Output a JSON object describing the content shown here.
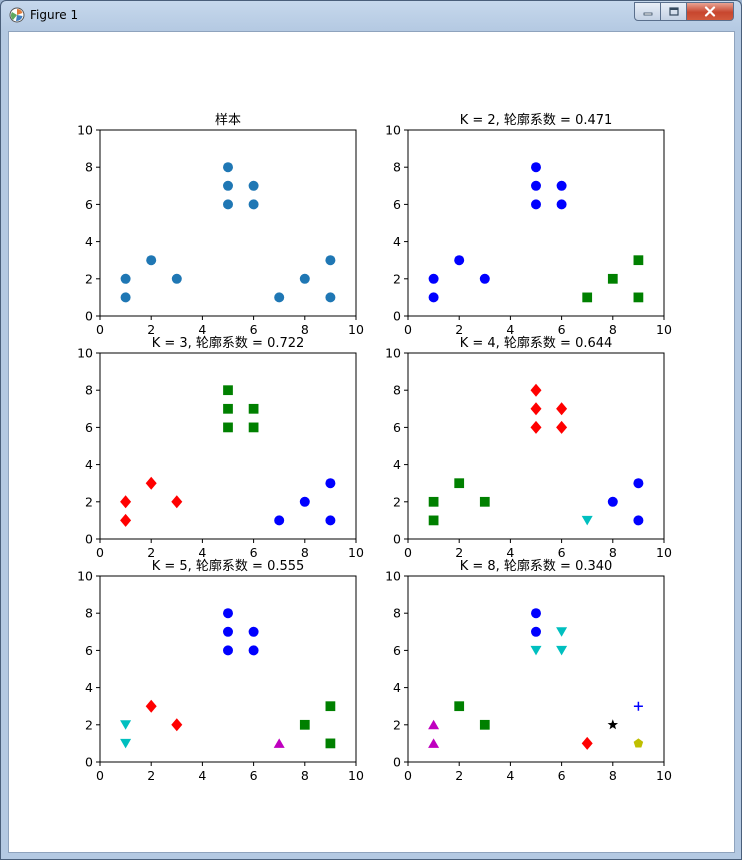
{
  "window": {
    "title": "Figure 1",
    "icon": "matplotlib-figure-icon"
  },
  "chart_data": [
    {
      "type": "scatter",
      "title": "样本",
      "xlim": [
        0,
        10
      ],
      "ylim": [
        0,
        10
      ],
      "xticks": [
        "0",
        "2",
        "4",
        "6",
        "8",
        "10"
      ],
      "yticks": [
        "0",
        "2",
        "4",
        "6",
        "8",
        "10"
      ],
      "series": [
        {
          "marker": "circle",
          "color": "#1f77b4",
          "x": [
            1,
            1,
            2,
            3,
            5,
            5,
            5,
            6,
            6,
            7,
            8,
            9,
            9
          ],
          "y": [
            1,
            2,
            3,
            2,
            8,
            7,
            6,
            7,
            6,
            1,
            2,
            1,
            3
          ]
        }
      ]
    },
    {
      "type": "scatter",
      "title": "K = 2, 轮廓系数 = 0.471",
      "xlim": [
        0,
        10
      ],
      "ylim": [
        0,
        10
      ],
      "xticks": [
        "0",
        "2",
        "4",
        "6",
        "8",
        "10"
      ],
      "yticks": [
        "0",
        "2",
        "4",
        "6",
        "8",
        "10"
      ],
      "series": [
        {
          "marker": "circle",
          "color": "#0000ff",
          "x": [
            1,
            1,
            2,
            3,
            5,
            5,
            5,
            6,
            6
          ],
          "y": [
            1,
            2,
            3,
            2,
            8,
            7,
            6,
            7,
            6
          ]
        },
        {
          "marker": "square",
          "color": "#008000",
          "x": [
            7,
            8,
            9,
            9
          ],
          "y": [
            1,
            2,
            1,
            3
          ]
        }
      ]
    },
    {
      "type": "scatter",
      "title": "K = 3, 轮廓系数 = 0.722",
      "xlim": [
        0,
        10
      ],
      "ylim": [
        0,
        10
      ],
      "xticks": [
        "0",
        "2",
        "4",
        "6",
        "8",
        "10"
      ],
      "yticks": [
        "0",
        "2",
        "4",
        "6",
        "8",
        "10"
      ],
      "series": [
        {
          "marker": "diamond",
          "color": "#ff0000",
          "x": [
            1,
            1,
            2,
            3
          ],
          "y": [
            1,
            2,
            3,
            2
          ]
        },
        {
          "marker": "square",
          "color": "#008000",
          "x": [
            5,
            5,
            5,
            6,
            6
          ],
          "y": [
            8,
            7,
            6,
            7,
            6
          ]
        },
        {
          "marker": "circle",
          "color": "#0000ff",
          "x": [
            7,
            8,
            9,
            9
          ],
          "y": [
            1,
            2,
            1,
            3
          ]
        }
      ]
    },
    {
      "type": "scatter",
      "title": "K = 4, 轮廓系数 = 0.644",
      "xlim": [
        0,
        10
      ],
      "ylim": [
        0,
        10
      ],
      "xticks": [
        "0",
        "2",
        "4",
        "6",
        "8",
        "10"
      ],
      "yticks": [
        "0",
        "2",
        "4",
        "6",
        "8",
        "10"
      ],
      "series": [
        {
          "marker": "square",
          "color": "#008000",
          "x": [
            1,
            1,
            2,
            3
          ],
          "y": [
            1,
            2,
            3,
            2
          ]
        },
        {
          "marker": "diamond",
          "color": "#ff0000",
          "x": [
            5,
            5,
            5,
            6,
            6
          ],
          "y": [
            8,
            7,
            6,
            7,
            6
          ]
        },
        {
          "marker": "triangle-down",
          "color": "#00bfbf",
          "x": [
            7
          ],
          "y": [
            1
          ]
        },
        {
          "marker": "circle",
          "color": "#0000ff",
          "x": [
            8,
            9,
            9
          ],
          "y": [
            2,
            1,
            3
          ]
        }
      ]
    },
    {
      "type": "scatter",
      "title": "K = 5, 轮廓系数 = 0.555",
      "xlim": [
        0,
        10
      ],
      "ylim": [
        0,
        10
      ],
      "xticks": [
        "0",
        "2",
        "4",
        "6",
        "8",
        "10"
      ],
      "yticks": [
        "0",
        "2",
        "4",
        "6",
        "8",
        "10"
      ],
      "series": [
        {
          "marker": "triangle-down",
          "color": "#00bfbf",
          "x": [
            1,
            1
          ],
          "y": [
            1,
            2
          ]
        },
        {
          "marker": "diamond",
          "color": "#ff0000",
          "x": [
            2,
            3
          ],
          "y": [
            3,
            2
          ]
        },
        {
          "marker": "circle",
          "color": "#0000ff",
          "x": [
            5,
            5,
            5,
            6,
            6
          ],
          "y": [
            8,
            7,
            6,
            7,
            6
          ]
        },
        {
          "marker": "triangle-up",
          "color": "#bf00bf",
          "x": [
            7
          ],
          "y": [
            1
          ]
        },
        {
          "marker": "square",
          "color": "#008000",
          "x": [
            8,
            9,
            9
          ],
          "y": [
            2,
            1,
            3
          ]
        }
      ]
    },
    {
      "type": "scatter",
      "title": "K = 8, 轮廓系数 = 0.340",
      "xlim": [
        0,
        10
      ],
      "ylim": [
        0,
        10
      ],
      "xticks": [
        "0",
        "2",
        "4",
        "6",
        "8",
        "10"
      ],
      "yticks": [
        "0",
        "2",
        "4",
        "6",
        "8",
        "10"
      ],
      "series": [
        {
          "marker": "triangle-up",
          "color": "#bf00bf",
          "x": [
            1,
            1
          ],
          "y": [
            1,
            2
          ]
        },
        {
          "marker": "square",
          "color": "#008000",
          "x": [
            2,
            3
          ],
          "y": [
            3,
            2
          ]
        },
        {
          "marker": "circle",
          "color": "#0000ff",
          "x": [
            5,
            5
          ],
          "y": [
            8,
            7
          ]
        },
        {
          "marker": "triangle-down",
          "color": "#00bfbf",
          "x": [
            5,
            6,
            6
          ],
          "y": [
            6,
            7,
            6
          ]
        },
        {
          "marker": "diamond",
          "color": "#ff0000",
          "x": [
            7
          ],
          "y": [
            1
          ]
        },
        {
          "marker": "star",
          "color": "#000000",
          "x": [
            8
          ],
          "y": [
            2
          ]
        },
        {
          "marker": "pentagon",
          "color": "#bfbf00",
          "x": [
            9
          ],
          "y": [
            1
          ]
        },
        {
          "marker": "plus",
          "color": "#0000ff",
          "x": [
            9
          ],
          "y": [
            3
          ]
        }
      ]
    }
  ]
}
